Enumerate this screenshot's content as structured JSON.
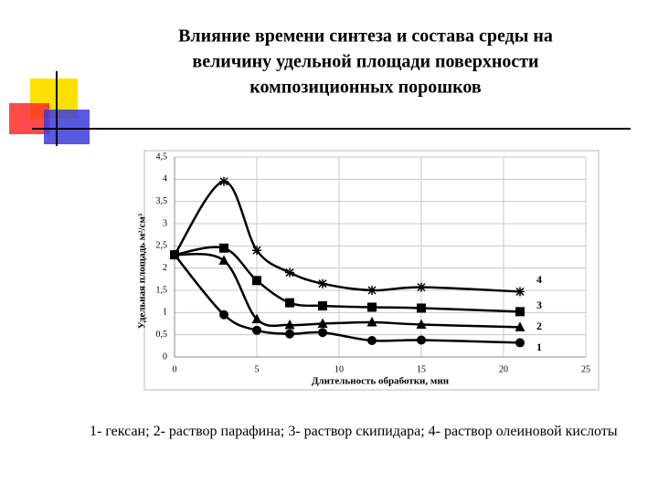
{
  "chart_data": {
    "type": "line",
    "title": [
      "Влияние времени синтеза и состава среды на",
      "величину удельной площади поверхности",
      "композиционных порошков"
    ],
    "x_label": "Длительность обработки, мин",
    "y_label": "Удельная площадь м²/см³",
    "caption": "1- гексан; 2- раствор парафина; 3- раствор скипидара; 4- раствор олеиновой кислоты",
    "xlim": [
      0,
      25
    ],
    "xticks": [
      0,
      5,
      10,
      15,
      20,
      25
    ],
    "ylim": [
      0,
      4.5
    ],
    "yticks": [
      0,
      {
        "value": 0.5,
        "label": "0,5"
      },
      1,
      {
        "value": 1.5,
        "label": "1,5"
      },
      2,
      {
        "value": 2.5,
        "label": "2,5"
      },
      3,
      {
        "value": 3.5,
        "label": "3,5"
      },
      4,
      {
        "value": 4.5,
        "label": "4,5"
      }
    ],
    "grid": true,
    "series": [
      {
        "name": "1",
        "color": "#000000",
        "marker": "circle",
        "x": [
          0,
          3,
          5,
          7,
          9,
          12,
          15,
          21
        ],
        "values": [
          2.3,
          0.95,
          0.6,
          0.52,
          0.55,
          0.37,
          0.38,
          0.32
        ]
      },
      {
        "name": "2",
        "color": "#000000",
        "marker": "triangle",
        "x": [
          0,
          3,
          5,
          7,
          9,
          12,
          15,
          21
        ],
        "values": [
          2.3,
          2.17,
          0.85,
          0.72,
          0.75,
          0.78,
          0.73,
          0.67
        ]
      },
      {
        "name": "3",
        "color": "#000000",
        "marker": "square",
        "x": [
          0,
          3,
          5,
          7,
          9,
          12,
          15,
          21
        ],
        "values": [
          2.3,
          2.45,
          1.72,
          1.22,
          1.15,
          1.12,
          1.1,
          1.02
        ]
      },
      {
        "name": "4",
        "color": "#000000",
        "marker": "star",
        "x": [
          0,
          3,
          5,
          7,
          9,
          12,
          15,
          21
        ],
        "values": [
          2.3,
          3.95,
          2.4,
          1.9,
          1.65,
          1.5,
          1.57,
          1.47
        ]
      }
    ]
  }
}
